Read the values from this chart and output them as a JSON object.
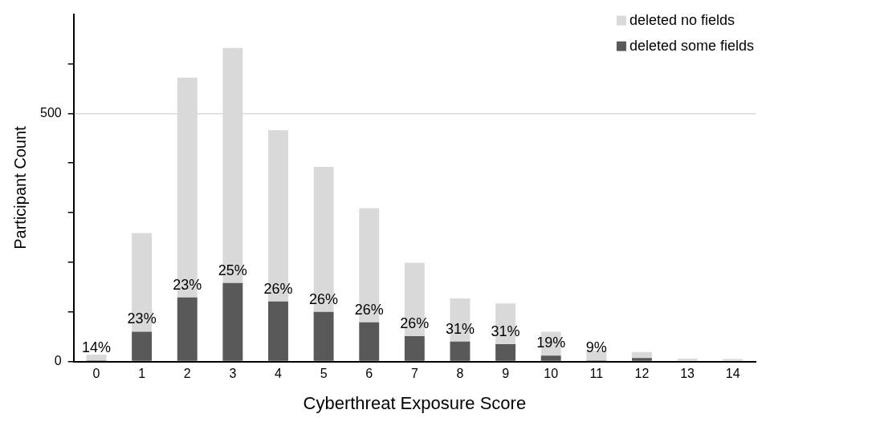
{
  "chart_data": {
    "type": "bar",
    "stacked": true,
    "xlabel": "Cyberthreat Exposure Score",
    "ylabel": "Participant Count",
    "categories": [
      "0",
      "1",
      "2",
      "3",
      "4",
      "5",
      "6",
      "7",
      "8",
      "9",
      "10",
      "11",
      "12",
      "13",
      "14"
    ],
    "series": [
      {
        "name": "deleted some fields",
        "color": "#595959",
        "values": [
          2,
          60,
          129,
          158,
          121,
          100,
          79,
          51,
          40,
          35,
          12,
          2,
          7,
          0,
          0
        ]
      },
      {
        "name": "deleted no fields",
        "color": "#d9d9d9",
        "values": [
          12,
          199,
          443,
          474,
          345,
          292,
          230,
          148,
          87,
          82,
          48,
          20,
          12,
          6,
          5
        ]
      }
    ],
    "annotations": [
      {
        "text": "14%",
        "x": "0",
        "y": 2
      },
      {
        "text": "23%",
        "x": "1",
        "y": 60
      },
      {
        "text": "23%",
        "x": "2",
        "y": 129
      },
      {
        "text": "25%",
        "x": "3",
        "y": 158
      },
      {
        "text": "26%",
        "x": "4",
        "y": 121
      },
      {
        "text": "26%",
        "x": "5",
        "y": 100
      },
      {
        "text": "26%",
        "x": "6",
        "y": 79
      },
      {
        "text": "26%",
        "x": "7",
        "y": 51
      },
      {
        "text": "31%",
        "x": "8",
        "y": 40
      },
      {
        "text": "31%",
        "x": "9",
        "y": 35
      },
      {
        "text": "19%",
        "x": "10",
        "y": 12
      },
      {
        "text": "9%",
        "x": "11",
        "y": 2
      }
    ],
    "ylim": [
      0,
      700
    ],
    "yticks": [
      0,
      {
        "value": 100,
        "label": null
      },
      {
        "value": 200,
        "label": null
      },
      {
        "value": 300,
        "label": null
      },
      {
        "value": 400,
        "label": null
      },
      500,
      {
        "value": 600,
        "label": null
      }
    ],
    "grid": "y",
    "legend": "top right"
  }
}
